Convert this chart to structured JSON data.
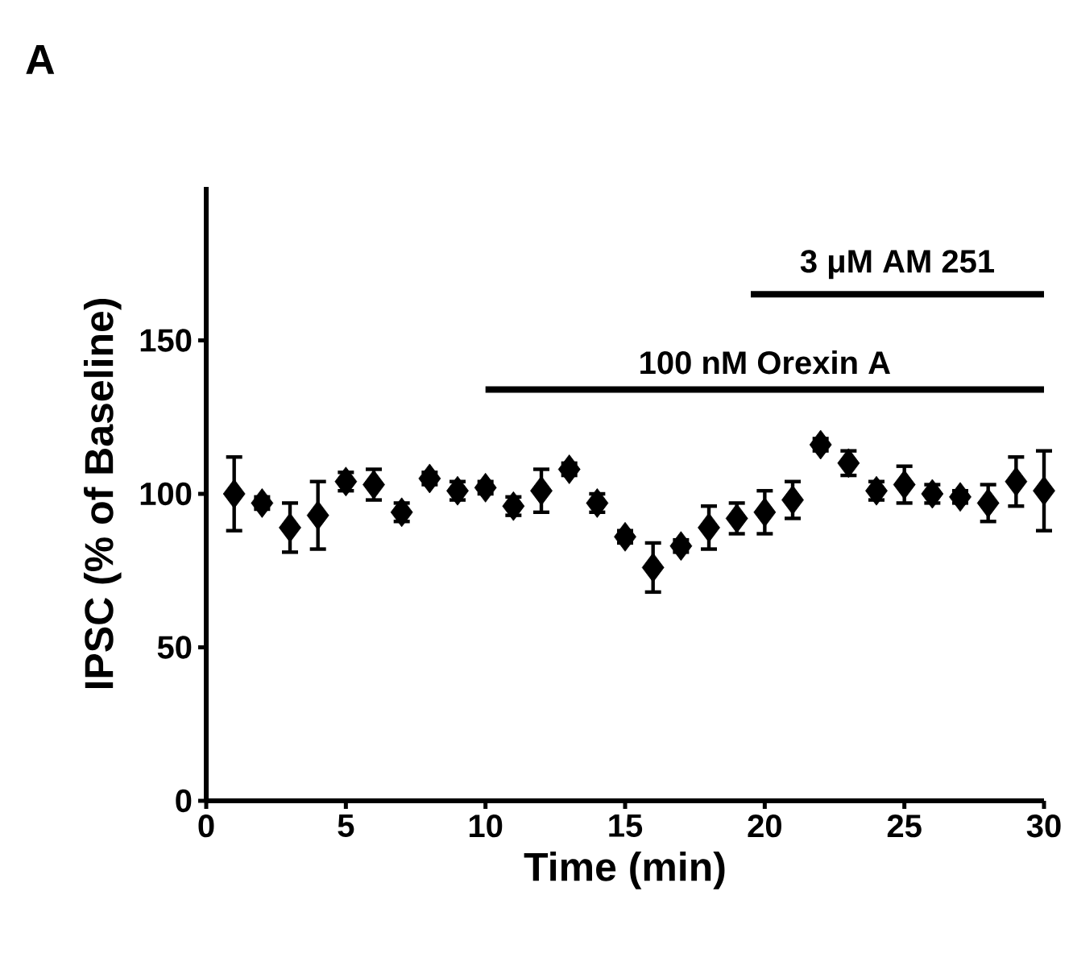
{
  "chart_data": {
    "type": "scatter",
    "title": "A",
    "xlabel": "Time (min)",
    "ylabel": "IPSC (% of Baseline)",
    "series": [
      {
        "color": "#000000",
        "marker": "diamond",
        "x": [
          1,
          2,
          3,
          4,
          5,
          6,
          7,
          8,
          9,
          10,
          11,
          12,
          13,
          14,
          15,
          16,
          17,
          18,
          19,
          20,
          21,
          22,
          23,
          24,
          25,
          26,
          27,
          28,
          29,
          30
        ],
        "values": [
          100,
          97,
          89,
          93,
          104,
          103,
          94,
          105,
          101,
          102,
          96,
          101,
          108,
          97,
          86,
          76,
          83,
          89,
          92,
          94,
          98,
          116,
          110,
          101,
          103,
          100,
          99,
          97,
          104,
          101
        ],
        "errors": [
          12,
          2,
          8,
          11,
          3,
          5,
          3,
          2,
          3,
          2,
          3,
          7,
          2,
          3,
          2,
          8,
          2,
          7,
          5,
          7,
          6,
          2,
          4,
          3,
          6,
          3,
          2,
          6,
          8,
          13
        ]
      },
      {
        "type": "line",
        "name": "100 nM Orexin A",
        "color": "#000000",
        "marker": "none",
        "x": [
          10,
          30
        ],
        "values": [
          134,
          134
        ]
      },
      {
        "type": "line",
        "name": "3 μM AM 251",
        "color": "#000000",
        "marker": "none",
        "x": [
          19.5,
          30
        ],
        "values": [
          165,
          165
        ]
      }
    ],
    "line_style": "solid",
    "xlim": [
      0,
      30
    ],
    "ylim": [
      0,
      200
    ],
    "xticks": [
      0,
      5,
      10,
      15,
      20,
      25,
      30
    ],
    "yticks": [
      0,
      50,
      100,
      150
    ],
    "grid": false
  }
}
